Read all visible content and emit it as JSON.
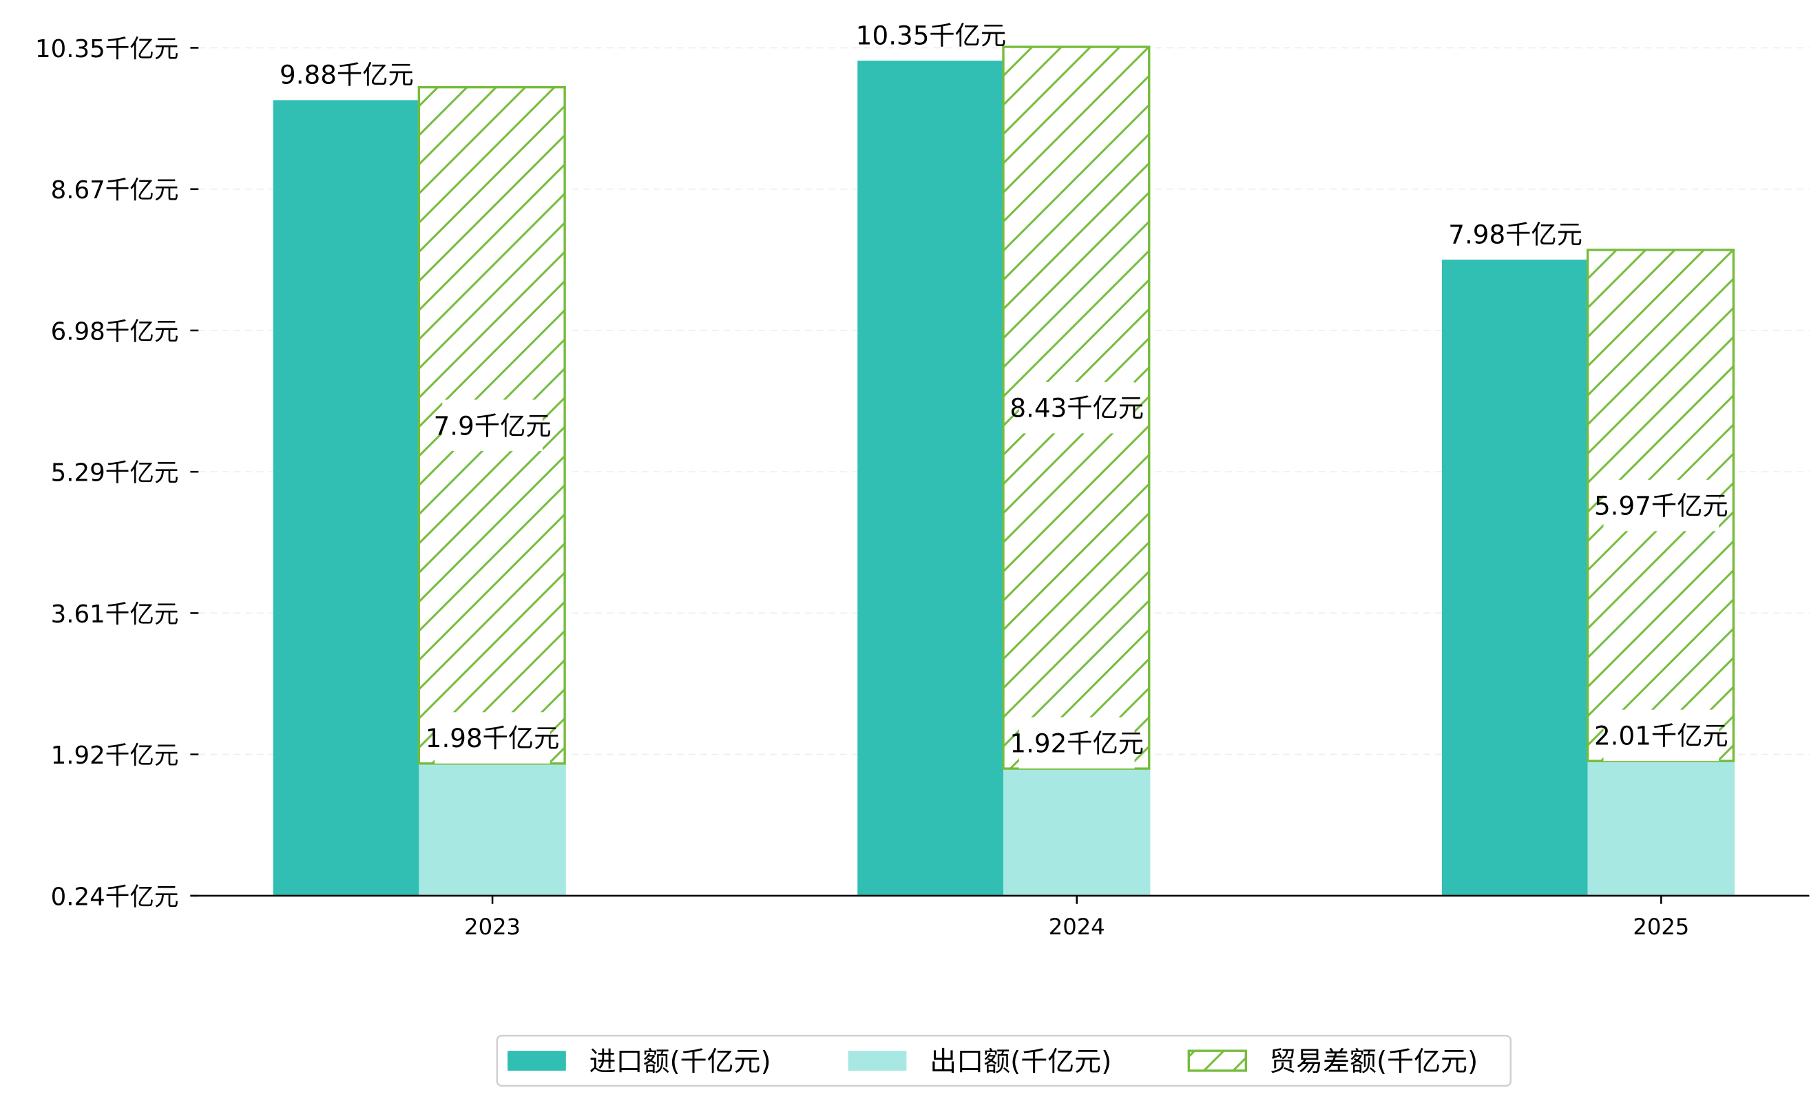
{
  "chart_data": {
    "type": "bar",
    "title": "",
    "xlabel": "",
    "ylabel": "",
    "categories": [
      "2023",
      "2024",
      "2025"
    ],
    "series": [
      {
        "name": "进口额(千亿元)",
        "values": [
          9.88,
          10.35,
          7.98
        ],
        "color": "#30BFB2",
        "stack": "import"
      },
      {
        "name": "出口额(千亿元)",
        "values": [
          1.98,
          1.92,
          2.01
        ],
        "color": "#A8E8E2",
        "stack": "export"
      },
      {
        "name": "贸易差额(千亿元)",
        "values": [
          7.9,
          8.43,
          5.97
        ],
        "color": "#76BC3C",
        "stack": "export",
        "pattern": "hatch"
      }
    ],
    "value_labels": {
      "import": [
        "9.88千亿元",
        "10.35千亿元",
        "7.98千亿元"
      ],
      "export": [
        "1.98千亿元",
        "1.92千亿元",
        "2.01千亿元"
      ],
      "diff": [
        "7.9千亿元",
        "8.43千亿元",
        "5.97千亿元"
      ]
    },
    "yticks": [
      "0.24千亿元",
      "1.92千亿元",
      "3.61千亿元",
      "5.29千亿元",
      "6.98千亿元",
      "8.67千亿元",
      "10.35千亿元"
    ],
    "ylim": [
      0.24,
      10.35
    ],
    "grid": true,
    "legend_position": "bottom-center"
  }
}
